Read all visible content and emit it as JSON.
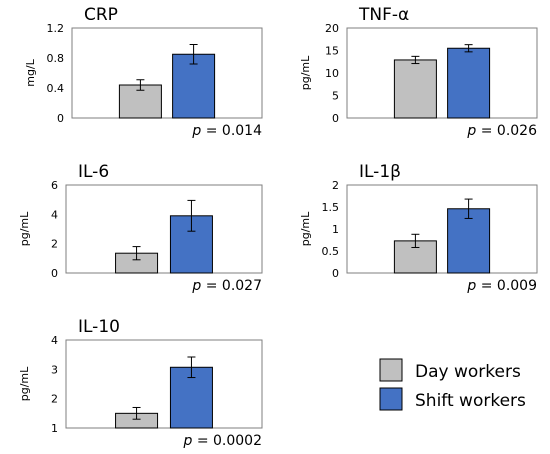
{
  "colors": {
    "day": "#c0c0c0",
    "shift": "#4472c4",
    "border": "#000000"
  },
  "legend": {
    "day_label": "Day workers",
    "shift_label": "Shift workers"
  },
  "chart_data": [
    {
      "type": "bar",
      "title": "CRP",
      "ylabel": "mg/L",
      "ylim": [
        0,
        1.2
      ],
      "yticks": [
        "0",
        "0.4",
        "0.8",
        "1.2"
      ],
      "categories": [
        "Day workers",
        "Shift workers"
      ],
      "values": [
        0.44,
        0.85
      ],
      "errors": [
        0.07,
        0.13
      ],
      "p_prefix": "p",
      "p_value": "= 0.014"
    },
    {
      "type": "bar",
      "title": "TNF-α",
      "ylabel": "pg/mL",
      "ylim": [
        0,
        20
      ],
      "yticks": [
        "0",
        "5",
        "10",
        "15",
        "20"
      ],
      "categories": [
        "Day workers",
        "Shift workers"
      ],
      "values": [
        12.9,
        15.5
      ],
      "errors": [
        0.8,
        0.8
      ],
      "p_prefix": "p",
      "p_value": "= 0.026"
    },
    {
      "type": "bar",
      "title": "IL-6",
      "ylabel": "pg/mL",
      "ylim": [
        0,
        6
      ],
      "yticks": [
        "0",
        "2",
        "4",
        "6"
      ],
      "categories": [
        "Day workers",
        "Shift workers"
      ],
      "values": [
        1.35,
        3.9
      ],
      "errors": [
        0.45,
        1.05
      ],
      "p_prefix": "p",
      "p_value": "= 0.027"
    },
    {
      "type": "bar",
      "title": "IL-1β",
      "ylabel": "pg/mL",
      "ylim": [
        0,
        2
      ],
      "yticks": [
        "0",
        "0.5",
        "1",
        "1.5",
        "2"
      ],
      "categories": [
        "Day workers",
        "Shift workers"
      ],
      "values": [
        0.73,
        1.46
      ],
      "errors": [
        0.15,
        0.22
      ],
      "p_prefix": "p",
      "p_value": "= 0.009"
    },
    {
      "type": "bar",
      "title": "IL-10",
      "ylabel": "pg/mL",
      "ylim": [
        1,
        4
      ],
      "yticks": [
        "1",
        "2",
        "3",
        "4"
      ],
      "categories": [
        "Day workers",
        "Shift workers"
      ],
      "values": [
        1.5,
        3.07
      ],
      "errors": [
        0.2,
        0.35
      ],
      "p_prefix": "p",
      "p_value": "= 0.0002"
    }
  ]
}
